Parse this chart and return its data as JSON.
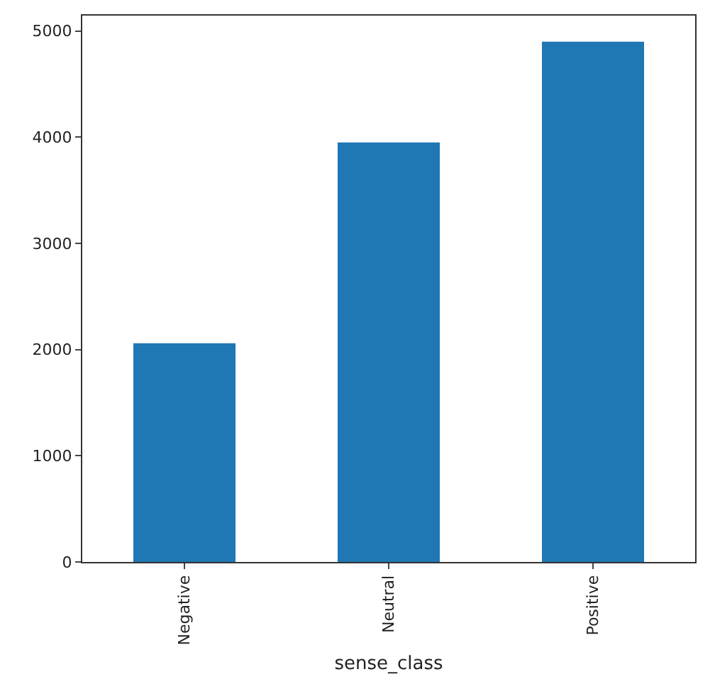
{
  "chart_data": {
    "type": "bar",
    "xlabel": "sense_class",
    "categories": [
      "Negative",
      "Neutral",
      "Positive"
    ],
    "values": [
      2060,
      3950,
      4900
    ],
    "color": "#1f77b4",
    "ylim": [
      0,
      5145
    ],
    "yticks": [
      0,
      1000,
      2000,
      3000,
      4000,
      5000
    ],
    "grid": false
  }
}
